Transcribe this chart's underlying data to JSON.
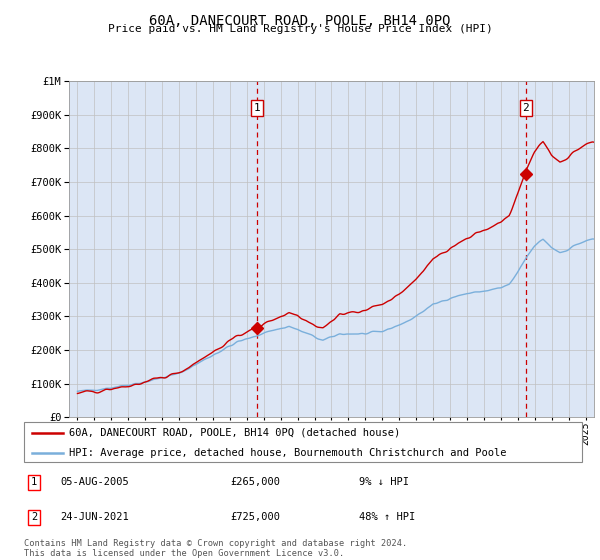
{
  "title": "60A, DANECOURT ROAD, POOLE, BH14 0PQ",
  "subtitle": "Price paid vs. HM Land Registry's House Price Index (HPI)",
  "legend_line1": "60A, DANECOURT ROAD, POOLE, BH14 0PQ (detached house)",
  "legend_line2": "HPI: Average price, detached house, Bournemouth Christchurch and Poole",
  "footnote": "Contains HM Land Registry data © Crown copyright and database right 2024.\nThis data is licensed under the Open Government Licence v3.0.",
  "sale1_year": 2005.59,
  "sale1_price": 265000,
  "sale2_year": 2021.48,
  "sale2_price": 725000,
  "ylim": [
    0,
    1000000
  ],
  "xlim": [
    1994.5,
    2025.5
  ],
  "background_color": "#ffffff",
  "plot_bg_color": "#dce6f5",
  "red_color": "#cc0000",
  "blue_color": "#7aafdb",
  "grid_color": "#c0c0c0",
  "title_fontsize": 10,
  "subtitle_fontsize": 8.5
}
